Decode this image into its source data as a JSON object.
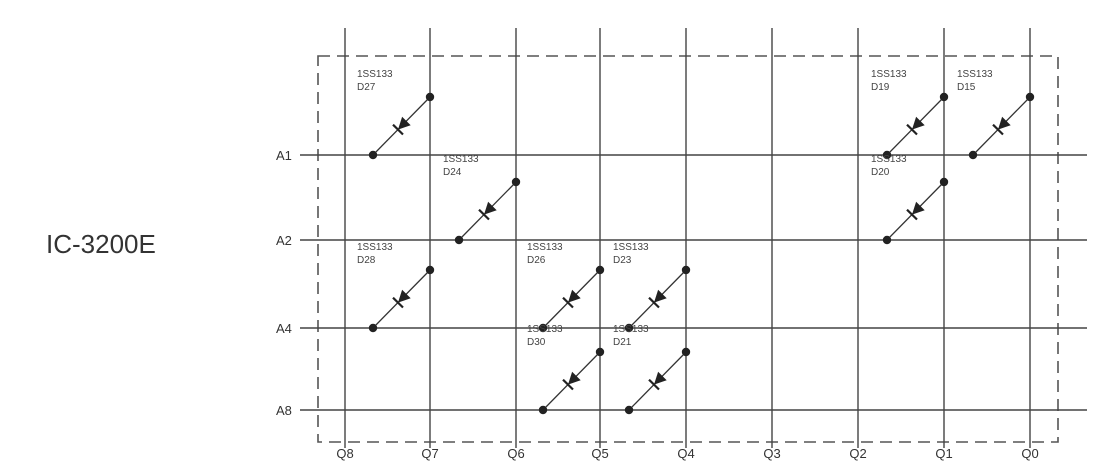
{
  "title": "IC-3200E",
  "rows": [
    "A1",
    "A2",
    "A4",
    "A8"
  ],
  "columns": [
    "Q8",
    "Q7",
    "Q6",
    "Q5",
    "Q4",
    "Q3",
    "Q2",
    "Q1",
    "Q0"
  ],
  "diodes": [
    {
      "part": "1SS133",
      "ref": "D27",
      "row": "A1",
      "col": "Q7"
    },
    {
      "part": "1SS133",
      "ref": "D24",
      "row": "A2",
      "col": "Q6"
    },
    {
      "part": "1SS133",
      "ref": "D28",
      "row": "A4",
      "col": "Q7"
    },
    {
      "part": "1SS133",
      "ref": "D26",
      "row": "A4",
      "col": "Q5"
    },
    {
      "part": "1SS133",
      "ref": "D23",
      "row": "A4",
      "col": "Q4"
    },
    {
      "part": "1SS133",
      "ref": "D30",
      "row": "A8",
      "col": "Q5"
    },
    {
      "part": "1SS133",
      "ref": "D21",
      "row": "A8",
      "col": "Q4"
    },
    {
      "part": "1SS133",
      "ref": "D19",
      "row": "A1",
      "col": "Q1"
    },
    {
      "part": "1SS133",
      "ref": "D15",
      "row": "A1",
      "col": "Q0"
    },
    {
      "part": "1SS133",
      "ref": "D20",
      "row": "A2",
      "col": "Q1"
    }
  ]
}
